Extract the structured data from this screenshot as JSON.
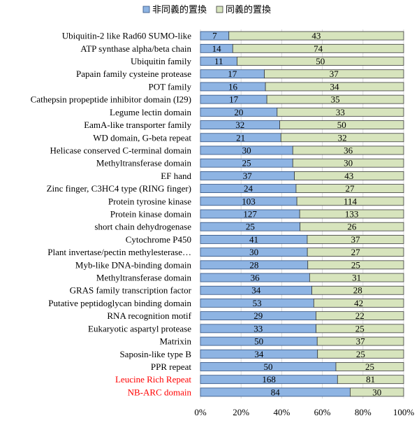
{
  "chart_data": {
    "type": "bar",
    "orientation": "horizontal",
    "stacked": "percent",
    "title": "",
    "xlabel": "",
    "ylabel": "",
    "xlim": [
      0,
      100
    ],
    "x_ticks": [
      "0%",
      "20%",
      "40%",
      "60%",
      "80%",
      "100%"
    ],
    "legend": {
      "placement": "top-center",
      "entries": [
        "非同義的置換",
        "同義的置換"
      ]
    },
    "series_colors": [
      "#8EB4E3",
      "#D7E4BD"
    ],
    "categories": [
      {
        "label": "Ubiquitin-2 like Rad60 SUMO-like",
        "color": "#000000"
      },
      {
        "label": "ATP synthase alpha/beta chain",
        "color": "#000000"
      },
      {
        "label": "Ubiquitin family",
        "color": "#000000"
      },
      {
        "label": "Papain family cysteine protease",
        "color": "#000000"
      },
      {
        "label": "POT family",
        "color": "#000000"
      },
      {
        "label": "Cathepsin propeptide inhibitor domain (I29)",
        "color": "#000000"
      },
      {
        "label": "Legume lectin domain",
        "color": "#000000"
      },
      {
        "label": "EamA-like transporter family",
        "color": "#000000"
      },
      {
        "label": "WD domain, G-beta repeat",
        "color": "#000000"
      },
      {
        "label": "Helicase conserved C-terminal domain",
        "color": "#000000"
      },
      {
        "label": "Methyltransferase domain",
        "color": "#000000"
      },
      {
        "label": "EF hand",
        "color": "#000000"
      },
      {
        "label": "Zinc finger, C3HC4 type (RING finger)",
        "color": "#000000"
      },
      {
        "label": "Protein tyrosine kinase",
        "color": "#000000"
      },
      {
        "label": "Protein kinase domain",
        "color": "#000000"
      },
      {
        "label": "short chain dehydrogenase",
        "color": "#000000"
      },
      {
        "label": "Cytochrome P450",
        "color": "#000000"
      },
      {
        "label": "Plant invertase/pectin methylesterase…",
        "color": "#000000"
      },
      {
        "label": "Myb-like DNA-binding domain",
        "color": "#000000"
      },
      {
        "label": "Methyltransferase domain",
        "color": "#000000"
      },
      {
        "label": "GRAS family transcription factor",
        "color": "#000000"
      },
      {
        "label": "Putative peptidoglycan binding domain",
        "color": "#000000"
      },
      {
        "label": "RNA recognition motif",
        "color": "#000000"
      },
      {
        "label": "Eukaryotic aspartyl protease",
        "color": "#000000"
      },
      {
        "label": "Matrixin",
        "color": "#000000"
      },
      {
        "label": "Saposin-like type B",
        "color": "#000000"
      },
      {
        "label": "PPR repeat",
        "color": "#000000"
      },
      {
        "label": "Leucine Rich Repeat",
        "color": "#FF0000"
      },
      {
        "label": "NB-ARC domain",
        "color": "#FF0000"
      }
    ],
    "series": [
      {
        "name": "非同義的置換",
        "values": [
          7,
          14,
          11,
          17,
          16,
          17,
          20,
          32,
          21,
          30,
          25,
          37,
          24,
          103,
          127,
          25,
          41,
          30,
          28,
          36,
          34,
          53,
          29,
          33,
          50,
          34,
          50,
          168,
          84
        ]
      },
      {
        "name": "同義的置換",
        "values": [
          43,
          74,
          50,
          37,
          34,
          35,
          33,
          50,
          32,
          36,
          30,
          43,
          27,
          114,
          133,
          26,
          37,
          27,
          25,
          31,
          28,
          42,
          22,
          25,
          37,
          25,
          25,
          81,
          30
        ]
      }
    ]
  }
}
